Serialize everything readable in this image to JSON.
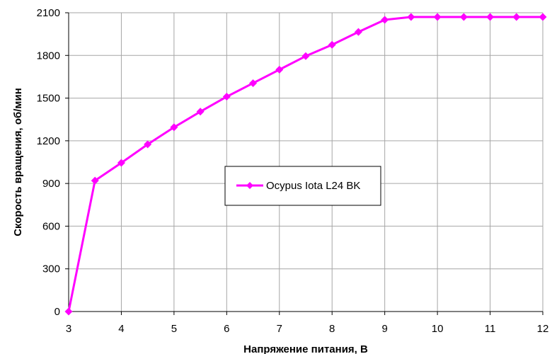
{
  "chart_data": {
    "type": "line",
    "xlabel": "Напряжение питания, В",
    "ylabel": "Скорость вращения, об/мин",
    "xlim": [
      3,
      12
    ],
    "ylim": [
      0,
      2100
    ],
    "xticks": [
      3,
      4,
      5,
      6,
      7,
      8,
      9,
      10,
      11,
      12
    ],
    "yticks": [
      0,
      300,
      600,
      900,
      1200,
      1500,
      1800,
      2100
    ],
    "grid": true,
    "legend_position": "center",
    "series": [
      {
        "name": "Ocypus Iota L24 BK",
        "color": "#ff00ff",
        "marker": "diamond",
        "x": [
          3,
          3.5,
          4,
          4.5,
          5,
          5.5,
          6,
          6.5,
          7,
          7.5,
          8,
          8.5,
          9,
          9.5,
          10,
          10.5,
          11,
          11.5,
          12
        ],
        "y": [
          0,
          920,
          1045,
          1175,
          1295,
          1405,
          1510,
          1605,
          1700,
          1795,
          1875,
          1965,
          2050,
          2070,
          2070,
          2070,
          2070,
          2070,
          2070
        ]
      }
    ]
  }
}
